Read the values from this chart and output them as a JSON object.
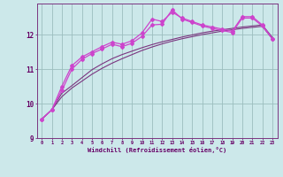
{
  "xlabel": "Windchill (Refroidissement éolien,°C)",
  "x": [
    0,
    1,
    2,
    3,
    4,
    5,
    6,
    7,
    8,
    9,
    10,
    11,
    12,
    13,
    14,
    15,
    16,
    17,
    18,
    19,
    20,
    21,
    22,
    23
  ],
  "line1": [
    9.55,
    9.82,
    10.3,
    10.52,
    10.75,
    10.98,
    11.15,
    11.3,
    11.42,
    11.52,
    11.62,
    11.71,
    11.79,
    11.86,
    11.93,
    11.99,
    12.05,
    12.1,
    12.14,
    12.18,
    12.22,
    12.25,
    12.28,
    11.92
  ],
  "line2": [
    9.55,
    9.82,
    10.2,
    10.45,
    10.65,
    10.85,
    11.02,
    11.17,
    11.3,
    11.42,
    11.54,
    11.64,
    11.73,
    11.81,
    11.88,
    11.94,
    12.0,
    12.05,
    12.1,
    12.14,
    12.18,
    12.21,
    12.24,
    11.88
  ],
  "line3": [
    9.55,
    9.82,
    10.5,
    11.1,
    11.35,
    11.5,
    11.65,
    11.78,
    11.72,
    11.82,
    12.05,
    12.45,
    12.38,
    12.65,
    12.48,
    12.38,
    12.28,
    12.22,
    12.16,
    12.1,
    12.52,
    12.52,
    12.28,
    11.88
  ],
  "line4": [
    9.55,
    9.82,
    10.38,
    11.0,
    11.28,
    11.45,
    11.58,
    11.72,
    11.65,
    11.75,
    11.95,
    12.28,
    12.3,
    12.72,
    12.45,
    12.35,
    12.25,
    12.18,
    12.12,
    12.06,
    12.48,
    12.48,
    12.25,
    11.88
  ],
  "bg_color": "#cce8ea",
  "grid_color": "#9bbdbe",
  "line_color_dark": "#7b3580",
  "line_color_bright": "#cc44cc",
  "ylim": [
    9.0,
    12.9
  ],
  "yticks": [
    9,
    10,
    11,
    12
  ],
  "xlim": [
    -0.5,
    23.5
  ]
}
